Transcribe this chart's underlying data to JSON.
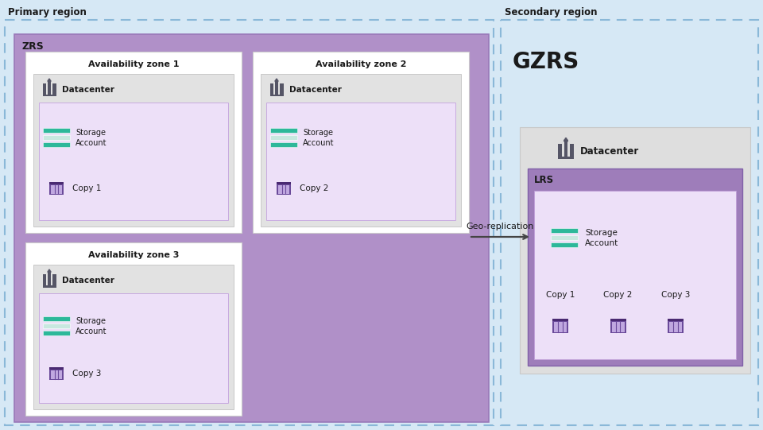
{
  "bg_color": "#d6e8f5",
  "primary_region_label": "Primary region",
  "secondary_region_label": "Secondary region",
  "gzrs_label": "GZRS",
  "zrs_label": "ZRS",
  "lrs_label": "LRS",
  "geo_replication_label": "Geo-replication",
  "availability_zones": [
    "Availability zone 1",
    "Availability zone 2",
    "Availability zone 3"
  ],
  "copy_labels_zone": [
    "Copy 1",
    "Copy 2",
    "Copy 3"
  ],
  "copy_labels_lrs": [
    "Copy 1",
    "Copy 2",
    "Copy 3"
  ],
  "purple_zrs": "#b090c8",
  "purple_lrs": "#9e7dba",
  "purple_light": "#e0d0ee",
  "purple_lighter": "#ede0f8",
  "gray_dc": "#d8d8d8",
  "storage_colors": [
    "#2db89a",
    "#c8e8e0",
    "#2db89a"
  ],
  "copy_icon_dark": "#6a4a9a",
  "copy_icon_light": "#c0a8e0",
  "copy_icon_mid": "#9070b8",
  "text_color": "#1a1a1a",
  "font_family": "DejaVu Sans"
}
